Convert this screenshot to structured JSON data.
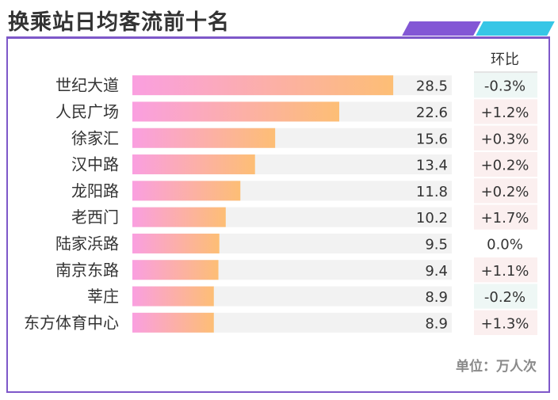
{
  "title": "换乘站日均客流前十名",
  "change_header": "环比",
  "unit_note": "单位：万人次",
  "colors": {
    "frame": "#7e58c9",
    "stripe_purple": "#8357d5",
    "stripe_cyan": "#37c6e6",
    "bar_start": "#fa9fe0",
    "bar_end": "#fdbe75",
    "track": "#f2f2f2",
    "change_up_bg": "#fbefef",
    "change_down_bg": "#eef7f5",
    "change_flat_bg": "#ffffff"
  },
  "chart_data": {
    "type": "bar",
    "orientation": "horizontal",
    "title": "换乘站日均客流前十名",
    "categories": [
      "世纪大道",
      "人民广场",
      "徐家汇",
      "汉中路",
      "龙阳路",
      "老西门",
      "陆家浜路",
      "南京东路",
      "莘庄",
      "东方体育中心"
    ],
    "values": [
      28.5,
      22.6,
      15.6,
      13.4,
      11.8,
      10.2,
      9.5,
      9.4,
      8.9,
      8.9
    ],
    "value_labels": [
      "28.5",
      "22.6",
      "15.6",
      "13.4",
      "11.8",
      "10.2",
      "9.5",
      "9.4",
      "8.9",
      "8.9"
    ],
    "changes": [
      "-0.3%",
      "+1.2%",
      "+0.3%",
      "+0.2%",
      "+0.2%",
      "+1.7%",
      "0.0%",
      "+1.1%",
      "-0.2%",
      "+1.3%"
    ],
    "xlim": [
      0,
      42
    ],
    "unit": "万人次",
    "grid": false,
    "legend": "none"
  }
}
